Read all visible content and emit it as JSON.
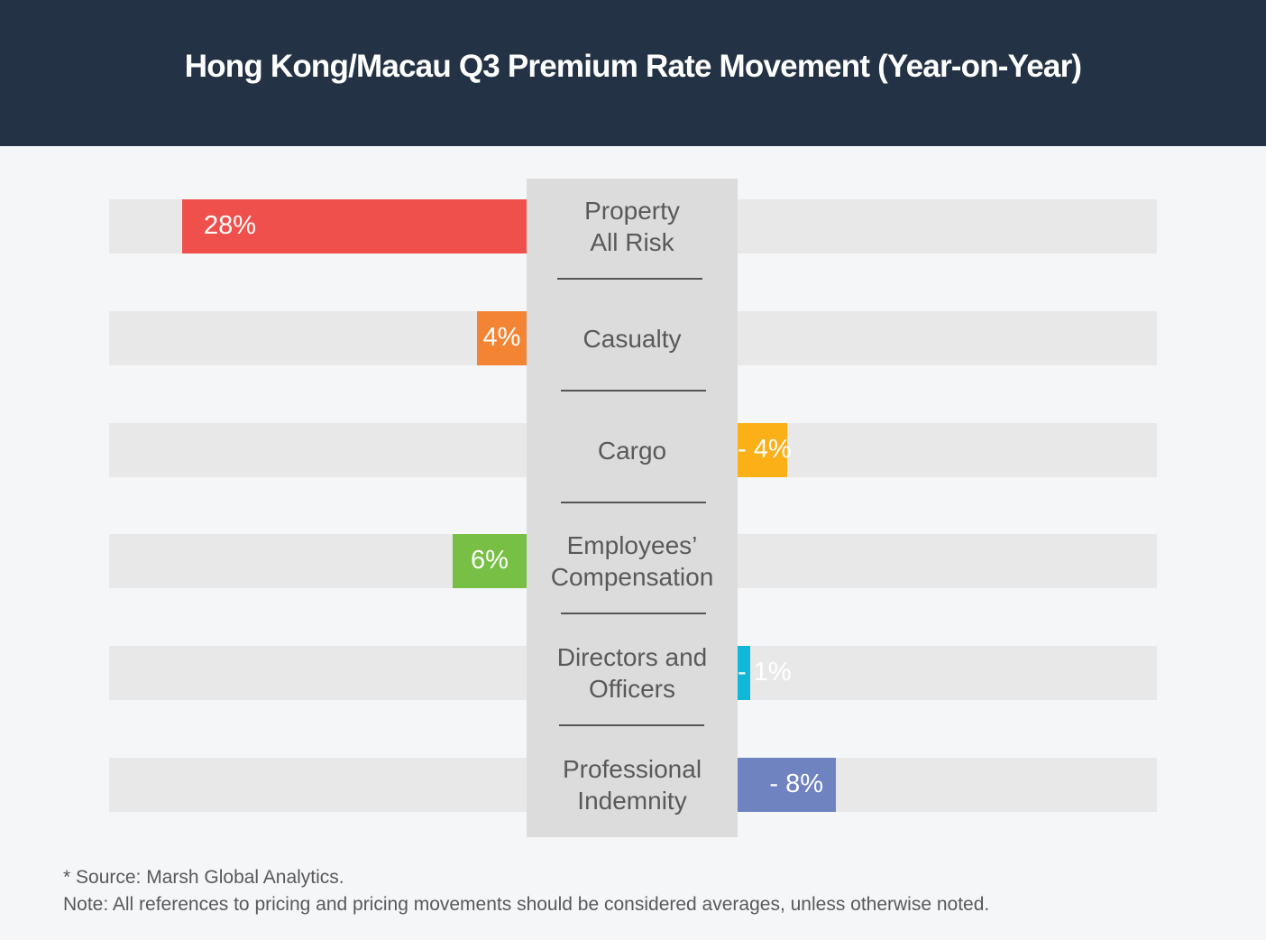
{
  "header": {
    "title": "Hong Kong/Macau Q3 Premium Rate Movement (Year-on-Year)"
  },
  "chart_data": {
    "type": "bar",
    "orientation": "horizontal-diverging",
    "title": "Hong Kong/Macau Q3 Premium Rate Movement (Year-on-Year)",
    "categories": [
      "Property\nAll Risk",
      "Casualty",
      "Cargo",
      "Employees’\nCompensation",
      "Directors and\nOfficers",
      "Professional\nIndemnity"
    ],
    "values": [
      28,
      4,
      -4,
      6,
      -1,
      -8
    ],
    "value_labels": [
      "28%",
      "4%",
      "- 4%",
      "6%",
      "- 1%",
      "- 8%"
    ],
    "colors": [
      "#f0504b",
      "#f38434",
      "#fbb018",
      "#77bf45",
      "#10b7d6",
      "#6f83c0"
    ],
    "unit": "%",
    "grid": false,
    "legend": "none"
  },
  "footnotes": {
    "source": "* Source: Marsh Global Analytics.",
    "note": "Note: All references to pricing and pricing movements should be considered averages, unless otherwise noted."
  },
  "colors": {
    "header_bg": "#233345",
    "page_bg": "#f5f6f8",
    "track": "#e8e8e8",
    "center_panel": "#dcdcdc",
    "label_text": "#595959"
  }
}
